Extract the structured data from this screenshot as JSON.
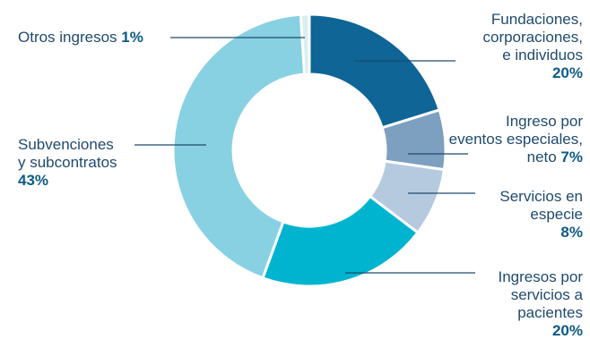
{
  "chart_data": {
    "type": "pie",
    "style": "donut",
    "slices": [
      {
        "label": "Fundaciones, corporaciones, e individuos",
        "value": 20,
        "pct_label": "20%",
        "color": "#0e6596"
      },
      {
        "label": "Ingreso por eventos especiales, neto",
        "value": 7,
        "pct_label": "7%",
        "color": "#7d9fc0"
      },
      {
        "label": "Servicios en especie",
        "value": 8,
        "pct_label": "8%",
        "color": "#b5c9df"
      },
      {
        "label": "Ingresos por servicios a pacientes",
        "value": 20,
        "pct_label": "20%",
        "color": "#00b4cf"
      },
      {
        "label": "Subvenciones y subcontratos",
        "value": 43,
        "pct_label": "43%",
        "color": "#87d1e2"
      },
      {
        "label": "Otros ingresos",
        "value": 1,
        "pct_label": "1%",
        "color": "#d8eef3"
      }
    ]
  },
  "labels": {
    "fundaciones": {
      "lines": [
        "Fundaciones,",
        "corporaciones,",
        "e individuos"
      ],
      "pct": "20%"
    },
    "eventos": {
      "lines": [
        "Ingreso por",
        "eventos especiales,"
      ],
      "last_text": "neto ",
      "pct": "7%"
    },
    "especie": {
      "lines": [
        "Servicios en",
        "especie"
      ],
      "pct": "8%"
    },
    "pacientes": {
      "lines": [
        "Ingresos por",
        "servicios a",
        "pacientes"
      ],
      "pct": "20%"
    },
    "subvenciones": {
      "lines": [
        "Subvenciones",
        "y subcontratos"
      ],
      "pct": "43%"
    },
    "otros": {
      "text": "Otros ingresos ",
      "pct": "1%"
    }
  }
}
